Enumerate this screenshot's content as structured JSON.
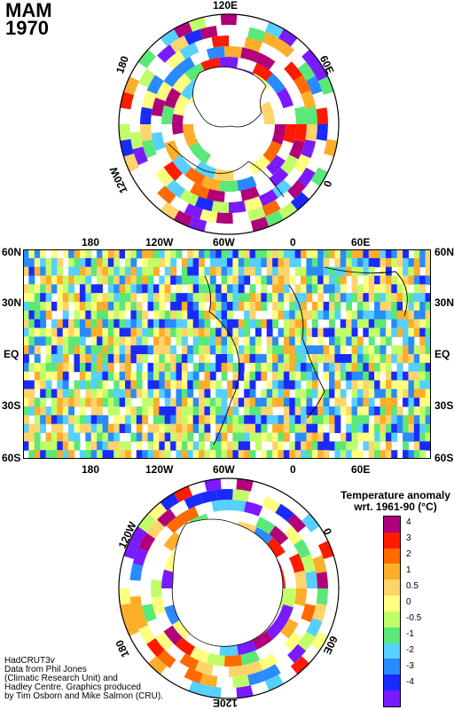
{
  "header": {
    "season": "MAM",
    "year": "1970"
  },
  "north_polar": {
    "labels": {
      "top": "120E",
      "upper_left": "180",
      "upper_right": "60E",
      "left": "120W",
      "right": "0"
    }
  },
  "global_map": {
    "lon_labels": [
      "180",
      "120W",
      "60W",
      "0",
      "60E"
    ],
    "lat_labels": [
      "60N",
      "30N",
      "EQ",
      "30S",
      "60S"
    ]
  },
  "south_polar": {
    "labels": {
      "upper_left": "120W",
      "upper_right": "0",
      "lower_left": "180",
      "lower_right": "60E",
      "bottom": "120E"
    }
  },
  "legend": {
    "title_line1": "Temperature anomaly",
    "title_line2": "wrt. 1961-90  (°C)",
    "entries": [
      {
        "label": "4",
        "color": "#b0007a"
      },
      {
        "label": "3",
        "color": "#ff1a00"
      },
      {
        "label": "2",
        "color": "#ff6a00"
      },
      {
        "label": "1",
        "color": "#ffae2a"
      },
      {
        "label": "0.5",
        "color": "#ffd46a"
      },
      {
        "label": "0",
        "color": "#ffff80"
      },
      {
        "label": "-0.5",
        "color": "#c0ff6a"
      },
      {
        "label": "-1",
        "color": "#5ae878"
      },
      {
        "label": "-2",
        "color": "#56d0ff"
      },
      {
        "label": "-3",
        "color": "#2a8aff"
      },
      {
        "label": "-4",
        "color": "#1a2aff"
      },
      {
        "label": "",
        "color": "#7a1aff"
      }
    ]
  },
  "credits": {
    "line1": "HadCRUT3v",
    "line2": "Data from Phil Jones",
    "line3": "(Climatic Research Unit) and",
    "line4": "Hadley Centre.  Graphics produced",
    "line5": "by Tim Osborn and Mike Salmon (CRU)."
  }
}
